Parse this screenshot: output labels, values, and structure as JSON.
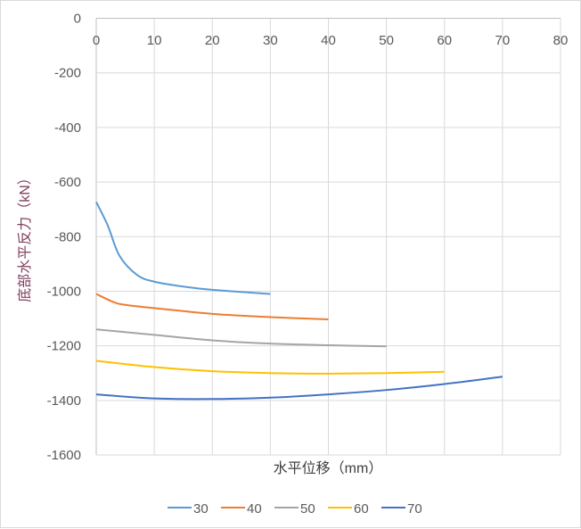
{
  "chart_data": {
    "type": "line",
    "title": "",
    "xlabel": "水平位移（mm）",
    "ylabel": "底部水平反力（kN）",
    "xlim": [
      0,
      80
    ],
    "ylim": [
      -1600,
      0
    ],
    "xticks": [
      0,
      10,
      20,
      30,
      40,
      50,
      60,
      70,
      80
    ],
    "yticks": [
      0,
      -200,
      -400,
      -600,
      -800,
      -1000,
      -1200,
      -1400,
      -1600
    ],
    "grid": true,
    "legend": "bottom",
    "series": [
      {
        "name": "30",
        "color": "#5b9bd5",
        "x": [
          0,
          2,
          4,
          7,
          10,
          15,
          20,
          30
        ],
        "y": [
          -673,
          -760,
          -870,
          -940,
          -965,
          -983,
          -995,
          -1010
        ]
      },
      {
        "name": "40",
        "color": "#ed7d31",
        "x": [
          0,
          3,
          5,
          10,
          20,
          30,
          40
        ],
        "y": [
          -1010,
          -1040,
          -1050,
          -1062,
          -1083,
          -1095,
          -1103
        ]
      },
      {
        "name": "50",
        "color": "#a5a5a5",
        "x": [
          0,
          10,
          20,
          30,
          40,
          50
        ],
        "y": [
          -1140,
          -1160,
          -1180,
          -1192,
          -1198,
          -1202
        ]
      },
      {
        "name": "60",
        "color": "#ffc000",
        "x": [
          0,
          10,
          20,
          30,
          40,
          50,
          60
        ],
        "y": [
          -1255,
          -1278,
          -1293,
          -1300,
          -1302,
          -1300,
          -1295
        ]
      },
      {
        "name": "70",
        "color": "#4472c4",
        "x": [
          0,
          10,
          20,
          30,
          40,
          50,
          60,
          70
        ],
        "y": [
          -1378,
          -1393,
          -1395,
          -1390,
          -1378,
          -1362,
          -1340,
          -1313
        ]
      }
    ]
  }
}
